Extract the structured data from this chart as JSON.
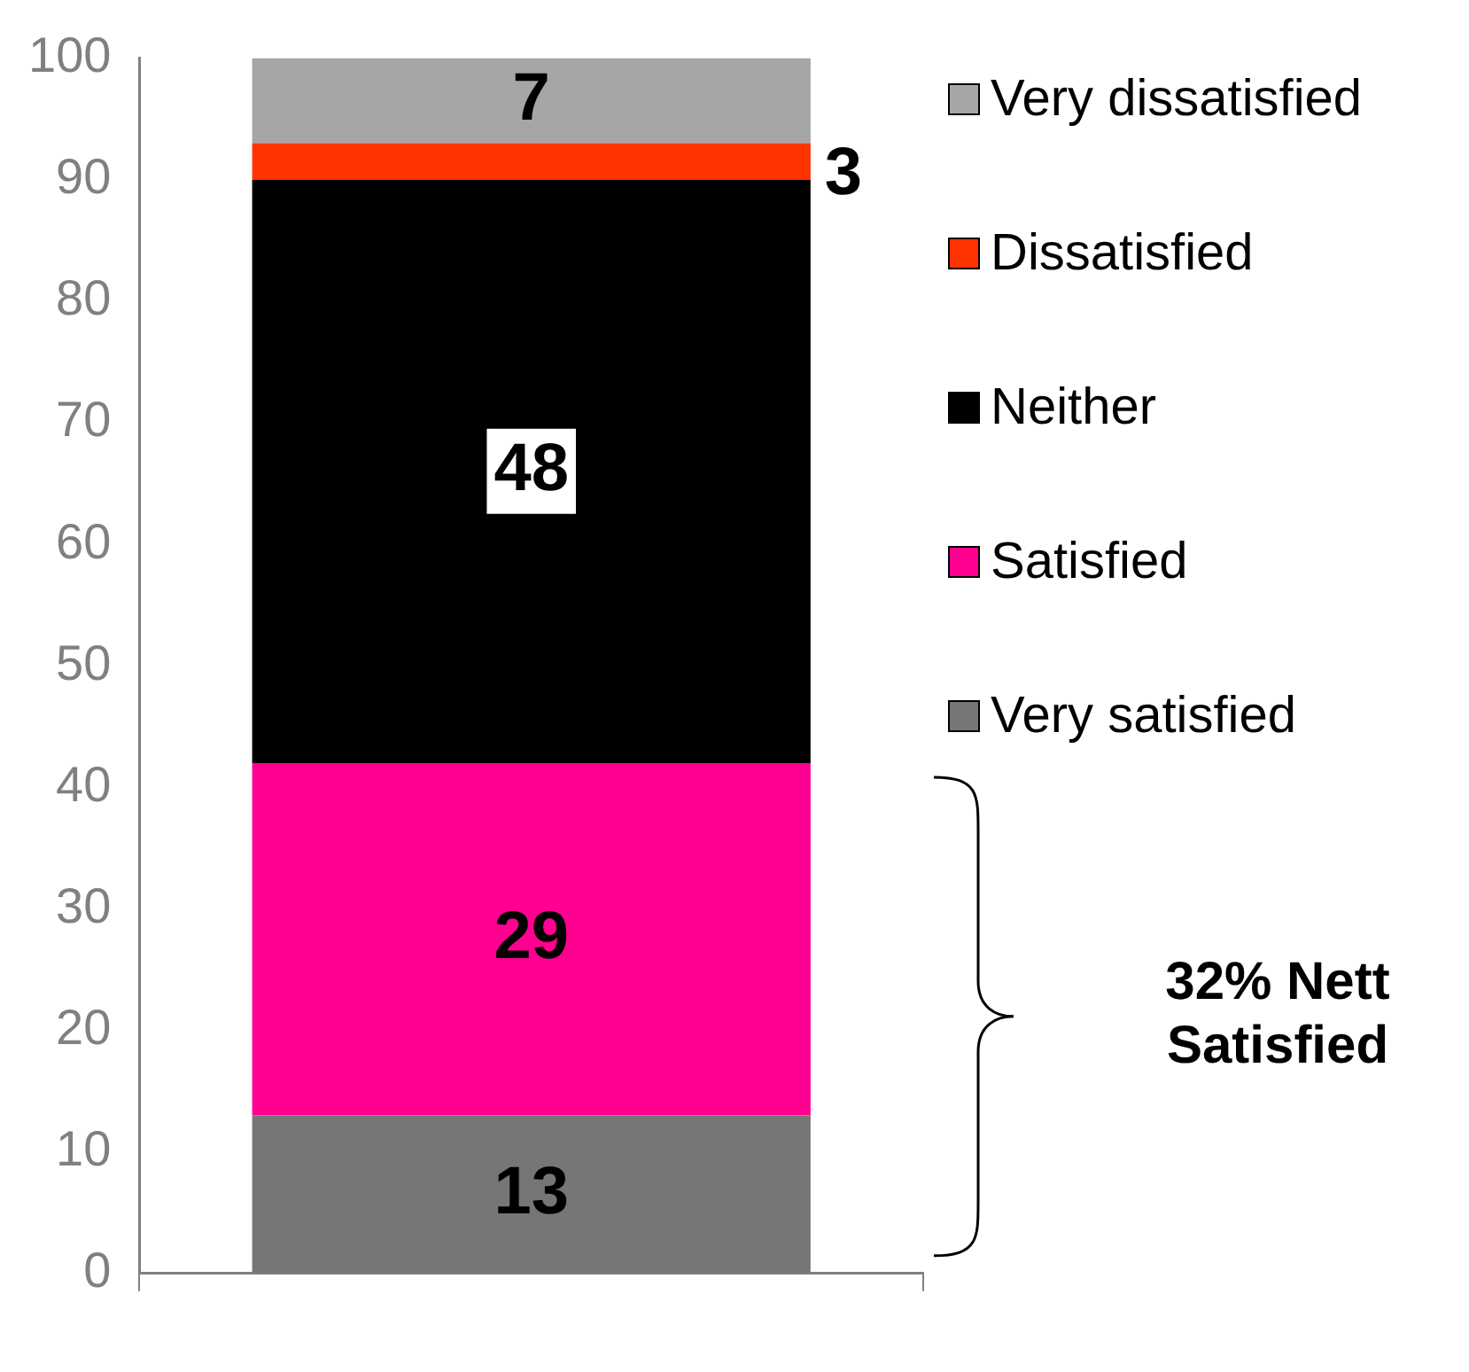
{
  "chart_data": {
    "type": "bar",
    "stacked": true,
    "categories": [
      null
    ],
    "series": [
      {
        "name": "Very satisfied",
        "color": "#767676",
        "values": [
          13
        ]
      },
      {
        "name": "Satisfied",
        "color": "#ff0090",
        "values": [
          29
        ]
      },
      {
        "name": "Neither",
        "color": "#000000",
        "values": [
          48
        ]
      },
      {
        "name": "Dissatisfied",
        "color": "#ff3300",
        "values": [
          3
        ]
      },
      {
        "name": "Very dissatisfied",
        "color": "#a6a6a6",
        "values": [
          7
        ]
      }
    ],
    "ylim": [
      0,
      100
    ],
    "yticks": [
      0,
      10,
      20,
      30,
      40,
      50,
      60,
      70,
      80,
      90,
      100
    ],
    "grid": false,
    "legend": "right",
    "data_labels": true,
    "annotations": [
      "32% Nett Satisfied"
    ]
  }
}
